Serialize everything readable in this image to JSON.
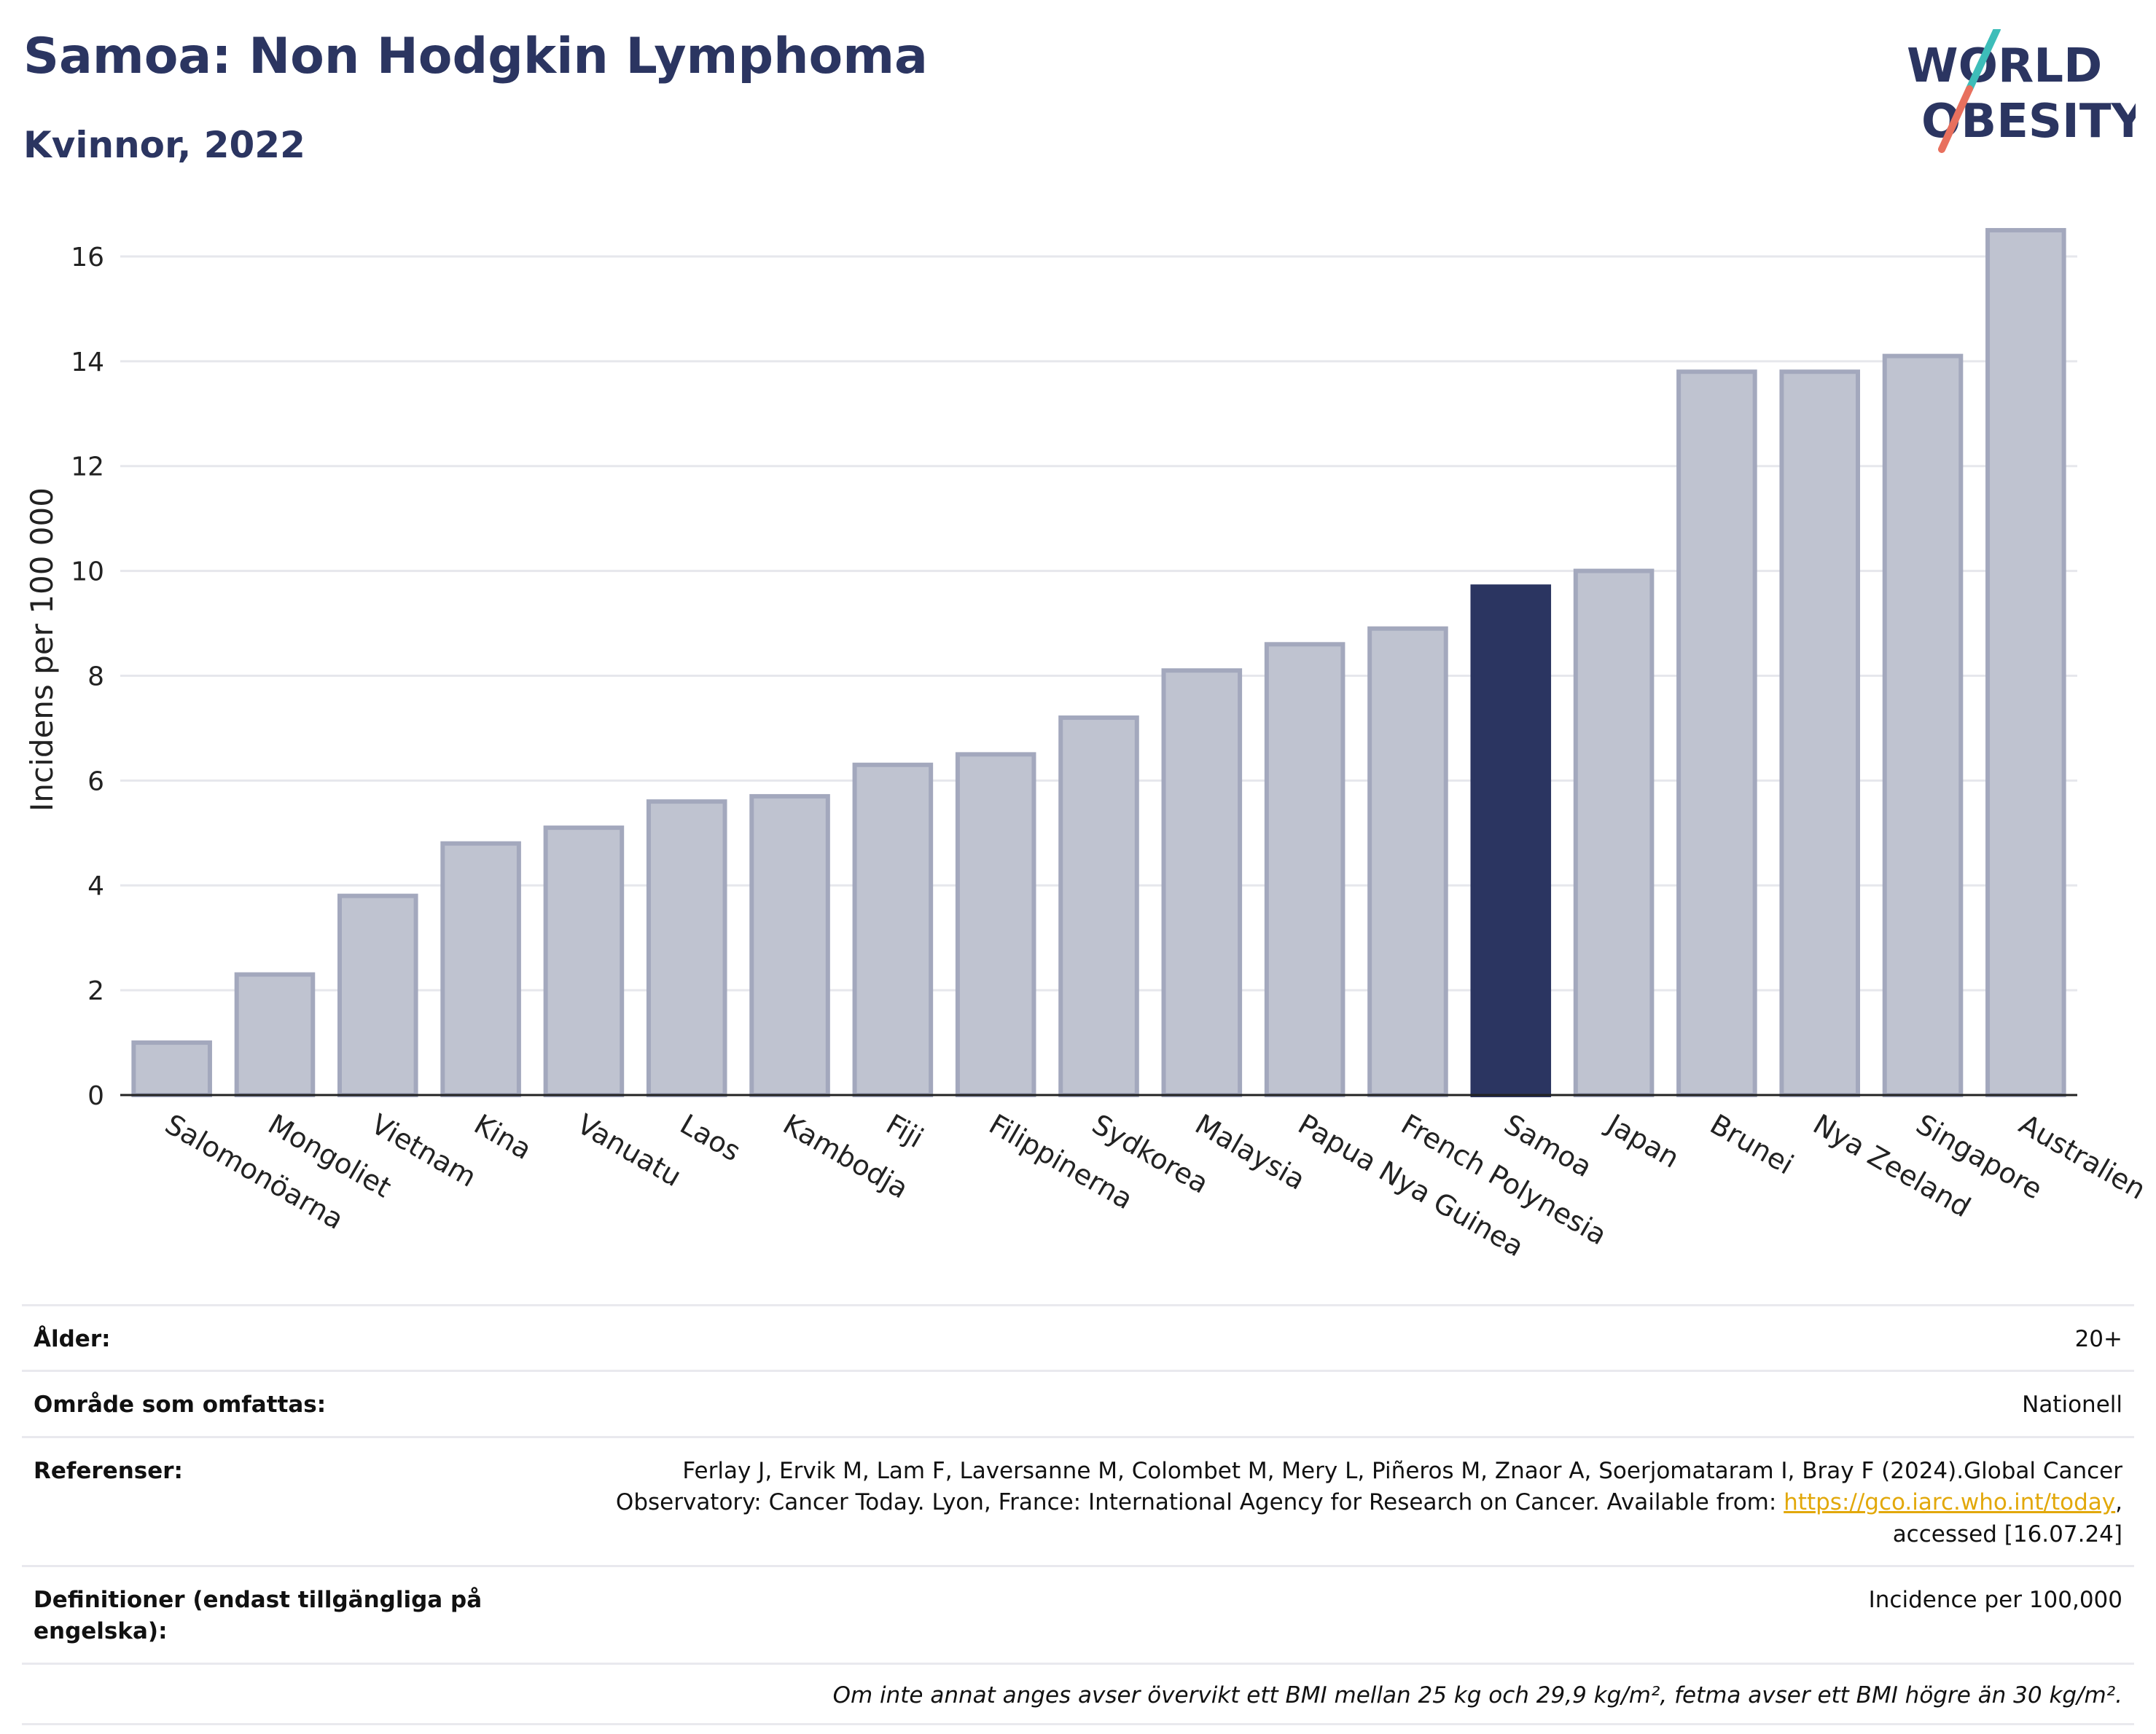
{
  "header": {
    "title": "Samoa: Non Hodgkin Lymphoma",
    "subtitle": "Kvinnor, 2022"
  },
  "logo": {
    "line1": "WORLD",
    "line2": "OBESITY",
    "colors": {
      "text": "#2b3561",
      "slash_top": "#3dbdb9",
      "slash_bottom": "#e8705e"
    }
  },
  "chart_data": {
    "type": "bar",
    "title": "Samoa: Non Hodgkin Lymphoma",
    "subtitle": "Kvinnor, 2022",
    "ylabel": "Incidens per 100 000",
    "xlabel": "",
    "ylim": [
      0,
      17
    ],
    "yticks": [
      0,
      2,
      4,
      6,
      8,
      10,
      12,
      14,
      16
    ],
    "grid": true,
    "highlight": "Samoa",
    "colors": {
      "default_fill": "#bfc3d0",
      "default_stroke": "#a3a8bd",
      "highlight": "#2b3561"
    },
    "categories": [
      "Salomonöarna",
      "Mongoliet",
      "Vietnam",
      "Kina",
      "Vanuatu",
      "Laos",
      "Kambodja",
      "Fiji",
      "Filippinerna",
      "Sydkorea",
      "Malaysia",
      "Papua Nya Guinea",
      "French Polynesia",
      "Samoa",
      "Japan",
      "Brunei",
      "Nya Zeeland",
      "Singapore",
      "Australien"
    ],
    "values": [
      1.0,
      2.3,
      3.8,
      4.8,
      5.1,
      5.6,
      5.7,
      6.3,
      6.5,
      7.2,
      8.1,
      8.6,
      8.9,
      9.7,
      10.0,
      13.8,
      13.8,
      14.1,
      16.5
    ]
  },
  "info": {
    "age_label": "Ålder:",
    "age_value": "20+",
    "area_label": "Område som omfattas:",
    "area_value": "Nationell",
    "refs_label": "Referenser:",
    "refs_text1": "Ferlay J, Ervik M, Lam F, Laversanne M, Colombet M, Mery L, Piñeros M, Znaor A, Soerjomataram I, Bray F (2024).Global Cancer",
    "refs_text2": "Observatory: Cancer Today. Lyon, France: International Agency for Research on Cancer. Available from: ",
    "refs_link": "https://gco.iarc.who.int/today",
    "refs_text3": ",",
    "refs_text4": "accessed [16.07.24]",
    "defs_label": "Definitioner (endast tillgängliga på engelska):",
    "defs_value": "Incidence per 100,000",
    "note": "Om inte annat anges avser övervikt ett BMI mellan 25 kg och 29,9 kg/m², fetma avser ett BMI högre än 30 kg/m²."
  }
}
